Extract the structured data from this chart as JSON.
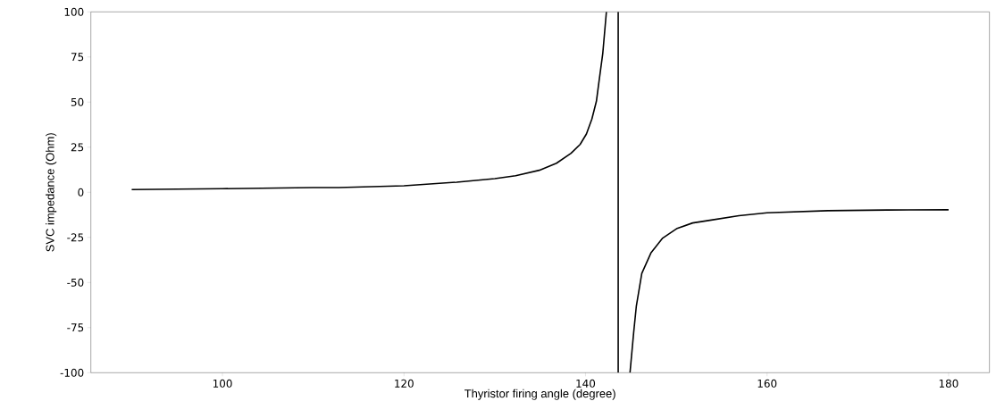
{
  "chart_data": {
    "type": "line",
    "xlabel": "Thyristor firing angle (degree)",
    "ylabel": "SVC impedance (Ohm)",
    "xlim": [
      85.5,
      184.5
    ],
    "ylim": [
      -100,
      100
    ],
    "xticks": [
      100,
      120,
      140,
      160,
      180
    ],
    "yticks": [
      -100,
      -75,
      -50,
      -25,
      0,
      25,
      50,
      75,
      100
    ],
    "grid": false,
    "marker": "none",
    "line_style": "solid",
    "ref_lines": [
      {
        "axis": "x",
        "value": 143.6,
        "color": "#000000"
      }
    ],
    "series": [
      {
        "color": "#000000",
        "x": [
          90,
          100,
          110,
          112.8,
          120,
          125.8,
          130,
          132.3,
          134.9,
          136.8,
          138.4,
          139.4,
          140.1,
          140.7,
          141.2,
          141.5,
          141.9,
          142.3,
          143.6,
          144.9,
          145.3,
          145.6,
          146.2,
          147.2,
          148.5,
          150.1,
          151.8,
          153.7,
          156.9,
          160,
          166.7,
          173.2,
          180
        ],
        "values": [
          1.5,
          2.0,
          2.6,
          2.6,
          3.6,
          5.6,
          7.6,
          9.2,
          12.2,
          16.1,
          21.6,
          26.5,
          32.3,
          40.6,
          50.5,
          62,
          76.9,
          100,
          null,
          -100,
          -78,
          -63,
          -45,
          -33.7,
          -25.4,
          -20,
          -17,
          -15.5,
          -13,
          -11.4,
          -10.2,
          -9.8,
          -9.7
        ]
      }
    ]
  }
}
